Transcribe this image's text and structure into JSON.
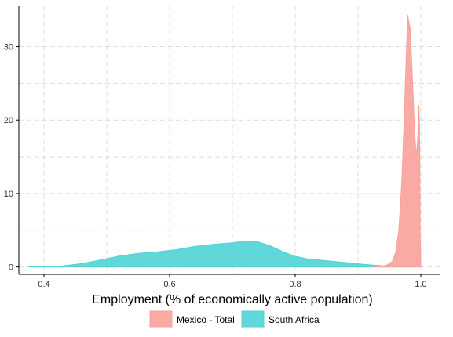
{
  "chart_data": {
    "type": "area",
    "title": "",
    "xlabel": "Employment (% of economically active population)",
    "ylabel": "",
    "xlim": [
      0.36,
      1.03
    ],
    "ylim": [
      -1,
      35.5
    ],
    "x_ticks": [
      0.4,
      0.6,
      0.8,
      1.0
    ],
    "x_tick_labels": [
      "0.4",
      "0.6",
      "0.8",
      "1.0"
    ],
    "y_ticks": [
      0,
      10,
      20,
      30
    ],
    "y_tick_labels": [
      "0",
      "10",
      "20",
      "30"
    ],
    "grid": true,
    "legend_position": "bottom",
    "series": [
      {
        "name": "South Africa",
        "color": "#4fd3d6",
        "points": [
          [
            0.375,
            0
          ],
          [
            0.4,
            0.05
          ],
          [
            0.43,
            0.15
          ],
          [
            0.46,
            0.45
          ],
          [
            0.49,
            0.95
          ],
          [
            0.52,
            1.5
          ],
          [
            0.55,
            1.85
          ],
          [
            0.58,
            2.05
          ],
          [
            0.61,
            2.35
          ],
          [
            0.64,
            2.8
          ],
          [
            0.67,
            3.1
          ],
          [
            0.7,
            3.3
          ],
          [
            0.72,
            3.55
          ],
          [
            0.74,
            3.45
          ],
          [
            0.76,
            2.9
          ],
          [
            0.78,
            2.1
          ],
          [
            0.8,
            1.45
          ],
          [
            0.82,
            1.1
          ],
          [
            0.85,
            0.85
          ],
          [
            0.88,
            0.6
          ],
          [
            0.91,
            0.35
          ],
          [
            0.94,
            0.15
          ],
          [
            0.97,
            0.05
          ],
          [
            1.0,
            0.02
          ]
        ]
      },
      {
        "name": "Mexico - Total",
        "color": "#f8a19a",
        "points": [
          [
            0.925,
            0
          ],
          [
            0.935,
            0.1
          ],
          [
            0.945,
            0.2
          ],
          [
            0.95,
            0.5
          ],
          [
            0.955,
            0.8
          ],
          [
            0.96,
            2.0
          ],
          [
            0.965,
            5.0
          ],
          [
            0.97,
            12.0
          ],
          [
            0.975,
            24.0
          ],
          [
            0.979,
            34.3
          ],
          [
            0.983,
            32.5
          ],
          [
            0.987,
            25.0
          ],
          [
            0.99,
            18.5
          ],
          [
            0.993,
            15.0
          ],
          [
            0.995,
            17.5
          ],
          [
            0.997,
            22.0
          ],
          [
            0.998,
            19.0
          ],
          [
            0.999,
            5.0
          ],
          [
            1.0,
            0
          ]
        ]
      }
    ]
  }
}
